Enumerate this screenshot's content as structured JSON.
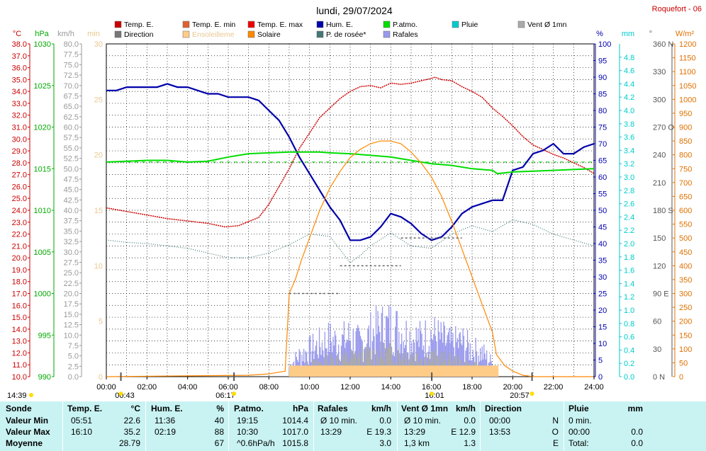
{
  "header": {
    "title": "lundi, 29/07/2024",
    "station": "Roquefort - 06"
  },
  "legend": [
    {
      "label": "Temp. E.",
      "color": "#cc0000"
    },
    {
      "label": "Temp. E. min",
      "color": "#e06030"
    },
    {
      "label": "Temp. E. max",
      "color": "#ee0000"
    },
    {
      "label": "Hum. E.",
      "color": "#0000aa"
    },
    {
      "label": "P.atmo.",
      "color": "#00dd00"
    },
    {
      "label": "Pluie",
      "color": "#00cccc"
    },
    {
      "label": "Vent Ø 1mn",
      "color": "#aaaaaa"
    },
    {
      "label": "Direction",
      "color": "#777777"
    },
    {
      "label": "Ensoleilleme",
      "color": "#ffcc88"
    },
    {
      "label": "Solaire",
      "color": "#ff8800"
    },
    {
      "label": "P. de rosée*",
      "color": "#447777"
    },
    {
      "label": "Rafales",
      "color": "#9999ee"
    }
  ],
  "axes_units": {
    "temp": "°C",
    "press": "hPa",
    "speed": "km/h",
    "min": "min",
    "hum": "%",
    "rain": "mm",
    "dir": "°",
    "solar": "W/m²"
  },
  "axes_ticks": {
    "temp": [
      "38.0",
      "37.0",
      "36.0",
      "35.0",
      "34.0",
      "33.0",
      "32.0",
      "31.0",
      "30.0",
      "29.0",
      "28.0",
      "27.0",
      "26.0",
      "25.0",
      "24.0",
      "23.0",
      "22.0",
      "21.0",
      "20.0",
      "19.0",
      "18.0",
      "17.0",
      "16.0",
      "15.0",
      "14.0",
      "13.0",
      "12.0",
      "11.0",
      "10.0"
    ],
    "press": [
      "1030",
      "1025",
      "1020",
      "1015",
      "1010",
      "1005",
      "1000",
      "995",
      "990"
    ],
    "speed": [
      "80.0",
      "77.5",
      "75.0",
      "72.5",
      "70.0",
      "67.5",
      "65.0",
      "62.5",
      "60.0",
      "57.5",
      "55.0",
      "52.5",
      "50.0",
      "47.5",
      "45.0",
      "42.5",
      "40.0",
      "37.5",
      "35.0",
      "32.5",
      "30.0",
      "27.5",
      "25.0",
      "22.5",
      "20.0",
      "17.5",
      "15.0",
      "12.5",
      "10.0",
      "7.5",
      "5.0",
      "2.5",
      "0.0"
    ],
    "min": [
      "30",
      "25",
      "20",
      "15",
      "10",
      "5",
      "0"
    ],
    "hum": [
      "100",
      "95",
      "90",
      "85",
      "80",
      "75",
      "70",
      "65",
      "60",
      "55",
      "50",
      "45",
      "40",
      "35",
      "30",
      "25",
      "20",
      "15",
      "10",
      "5",
      "0"
    ],
    "rain": [
      "4.8",
      "4.6",
      "4.4",
      "4.2",
      "4.0",
      "3.8",
      "3.6",
      "3.4",
      "3.2",
      "3.0",
      "2.8",
      "2.6",
      "2.4",
      "2.2",
      "2.0",
      "1.8",
      "1.6",
      "1.4",
      "1.2",
      "1.0",
      "0.8",
      "0.6",
      "0.4",
      "0.2",
      "0.0"
    ],
    "dir": [
      "360 N",
      "330",
      "300",
      "270 O",
      "240",
      "210",
      "180 S",
      "150",
      "120",
      "90 E",
      "60",
      "30",
      "0 N"
    ],
    "solar": [
      "1200",
      "1150",
      "1100",
      "1050",
      "1000",
      "950",
      "900",
      "850",
      "800",
      "750",
      "700",
      "650",
      "600",
      "550",
      "500",
      "450",
      "400",
      "350",
      "300",
      "250",
      "200",
      "150",
      "100",
      "50",
      "0"
    ],
    "time": [
      "00:00",
      "02:00",
      "04:00",
      "06:00",
      "08:00",
      "10:00",
      "12:00",
      "14:00",
      "16:00",
      "18:00",
      "20:00",
      "22:00",
      "24:00"
    ]
  },
  "markers": {
    "moonrise": "00:43",
    "sunrise": "06:17",
    "solar_noon": "16:01",
    "sunset": "20:57",
    "corner": "14:39"
  },
  "chart_data": {
    "type": "line",
    "x_unit": "hour",
    "xlim": [
      0,
      24
    ],
    "series": [
      {
        "name": "Temp. E.",
        "unit": "°C",
        "color": "#cc0000",
        "x": [
          0,
          1,
          2,
          3,
          4,
          5,
          5.85,
          6.5,
          7.5,
          8,
          8.5,
          9,
          9.5,
          10,
          10.5,
          11,
          11.5,
          12,
          12.5,
          13,
          13.5,
          14,
          14.5,
          15,
          15.5,
          16,
          16.17,
          16.5,
          17,
          17.5,
          18,
          18.5,
          19,
          19.5,
          20,
          20.5,
          21,
          21.5,
          22,
          22.5,
          23,
          23.5,
          24
        ],
        "y": [
          24.2,
          23.9,
          23.6,
          23.3,
          23.1,
          22.9,
          22.6,
          22.7,
          23.4,
          24.5,
          26.0,
          27.5,
          29.2,
          30.5,
          31.8,
          32.6,
          33.4,
          34.0,
          34.4,
          34.5,
          34.3,
          34.7,
          34.6,
          34.7,
          34.9,
          35.1,
          35.2,
          35.0,
          34.9,
          34.4,
          34.0,
          33.5,
          32.6,
          31.9,
          31.1,
          30.2,
          29.5,
          29.1,
          28.7,
          28.4,
          28.0,
          27.6,
          27.1
        ]
      },
      {
        "name": "Hum. E.",
        "unit": "%",
        "color": "#0000aa",
        "x": [
          0,
          0.5,
          1,
          1.5,
          2,
          2.5,
          3,
          3.5,
          4,
          4.5,
          5,
          5.5,
          6,
          6.5,
          7,
          7.5,
          8,
          8.5,
          9,
          9.5,
          10,
          10.5,
          11,
          11.5,
          12,
          12.5,
          13,
          13.5,
          14,
          14.5,
          15,
          15.5,
          16,
          16.5,
          17,
          17.5,
          18,
          18.5,
          19,
          19.5,
          20,
          20.5,
          21,
          21.5,
          22,
          22.5,
          23,
          23.5,
          24
        ],
        "y": [
          86,
          86,
          87,
          87,
          87,
          87,
          88,
          87,
          87,
          86,
          85,
          85,
          84,
          84,
          84,
          83,
          80,
          77,
          72,
          66,
          61,
          56,
          51,
          47,
          41,
          41,
          42,
          45,
          49,
          48,
          46,
          43,
          41,
          42,
          45,
          49,
          51,
          52,
          53,
          53,
          62,
          63,
          67,
          68,
          70,
          67,
          67,
          69,
          70
        ]
      },
      {
        "name": "P.atmo.",
        "unit": "hPa",
        "color": "#00dd00",
        "x": [
          0,
          1,
          2,
          3,
          4,
          5,
          6,
          7,
          8,
          9,
          10,
          10.5,
          11,
          12,
          13,
          14,
          15,
          16,
          17,
          18,
          19,
          19.25,
          20,
          21,
          22,
          23,
          24
        ],
        "y": [
          1015.8,
          1015.9,
          1016.0,
          1016.0,
          1015.8,
          1015.9,
          1016.4,
          1016.8,
          1016.9,
          1017.0,
          1017.0,
          1017.0,
          1016.9,
          1016.8,
          1016.6,
          1016.4,
          1016.0,
          1015.6,
          1015.4,
          1015.0,
          1014.8,
          1014.4,
          1014.6,
          1014.7,
          1014.8,
          1014.9,
          1015.0
        ]
      },
      {
        "name": "P. de rosée*",
        "unit": "°C",
        "color": "#447777",
        "x": [
          0,
          1,
          2,
          3,
          4,
          5,
          6,
          7,
          8,
          9,
          10,
          11,
          12,
          12.5,
          13,
          14,
          15,
          16,
          17,
          18,
          19,
          20,
          21,
          22,
          23,
          24
        ],
        "y": [
          21.5,
          21.3,
          21.2,
          21.0,
          20.8,
          20.4,
          20.0,
          20.0,
          20.4,
          21.1,
          22.0,
          21.8,
          19.6,
          20.2,
          21.0,
          22.1,
          21.0,
          20.8,
          22.0,
          22.7,
          22.2,
          23.2,
          22.8,
          22.0,
          21.5,
          21.0
        ]
      },
      {
        "name": "Solaire",
        "unit": "W/m²",
        "color": "#ff8800",
        "x": [
          0,
          7,
          8,
          8.8,
          9,
          9.3,
          9.6,
          10,
          10.5,
          11,
          11.5,
          12,
          12.5,
          13,
          13.5,
          14,
          14.5,
          15,
          15.5,
          16,
          16.5,
          17,
          17.5,
          18,
          18.5,
          19,
          19.2,
          19.6,
          20,
          20.5,
          21,
          24
        ],
        "y": [
          0,
          5,
          10,
          20,
          300,
          350,
          420,
          500,
          600,
          680,
          740,
          790,
          820,
          840,
          850,
          850,
          840,
          810,
          770,
          720,
          650,
          560,
          460,
          360,
          260,
          160,
          80,
          40,
          20,
          5,
          0,
          0
        ]
      },
      {
        "name": "Rafales",
        "unit": "km/h",
        "color": "#9999ee",
        "x": [
          9,
          9.5,
          10,
          10.5,
          11,
          11.5,
          12,
          12.5,
          13,
          13.5,
          14,
          14.5,
          15,
          15.5,
          16,
          16.5,
          17,
          17.5,
          18,
          18.5,
          19
        ],
        "y": [
          4,
          8,
          10,
          12,
          14,
          13,
          15,
          12,
          16,
          18,
          19.3,
          17,
          15,
          14,
          16,
          14,
          12,
          13,
          10,
          9,
          5
        ]
      },
      {
        "name": "Vent Ø 1mn",
        "unit": "km/h",
        "color": "#aaaaaa",
        "x": [
          9,
          10,
          11,
          12,
          13,
          14,
          15,
          16,
          17,
          18,
          19
        ],
        "y": [
          2,
          4,
          6,
          7,
          8,
          9,
          8,
          7,
          6,
          4,
          2
        ]
      },
      {
        "name": "Ensoleilleme",
        "unit": "min",
        "color": "#ffcc88",
        "x": [
          9,
          19.3
        ],
        "y": [
          1,
          1
        ]
      }
    ],
    "direction_levels_deg": [
      {
        "from": 9.0,
        "to": 11.5,
        "deg": 90
      },
      {
        "from": 11.5,
        "to": 14.5,
        "deg": 120
      },
      {
        "from": 14.5,
        "to": 17.5,
        "deg": 150
      }
    ]
  },
  "stats": {
    "headers": {
      "sonde": "Sonde",
      "temp": "Temp. E.",
      "temp_unit": "°C",
      "hum": "Hum. E.",
      "hum_unit": "%",
      "press": "P.atmo.",
      "press_unit": "hPa",
      "gust": "Rafales",
      "gust_unit": "km/h",
      "wind": "Vent Ø 1mn",
      "wind_unit": "km/h",
      "dir": "Direction",
      "rain": "Pluie",
      "rain_unit": "mm"
    },
    "rows": {
      "labels": [
        "Valeur Min",
        "Valeur Max",
        "Moyenne"
      ],
      "temp_time": [
        "05:51",
        "16:10",
        ""
      ],
      "temp_val": [
        "22.6",
        "35.2",
        "28.79"
      ],
      "hum_time": [
        "11:36",
        "02:19",
        ""
      ],
      "hum_val": [
        "40",
        "88",
        "67"
      ],
      "press_time": [
        "19:15",
        "10:30",
        "^0.6hPa/h"
      ],
      "press_val": [
        "1014.4",
        "1017.0",
        "1015.8"
      ],
      "gust_label": [
        "Ø 10 min.",
        "13:29",
        ""
      ],
      "gust_val": [
        "0.0",
        "E 19.3",
        "3.0"
      ],
      "wind_label": [
        "Ø 10 min.",
        "13:29",
        "1,3 km"
      ],
      "wind_val": [
        "0.0",
        "E 12.9",
        "1.3"
      ],
      "dir_time": [
        "00:00",
        "13:53",
        ""
      ],
      "dir_val": [
        "N",
        "O",
        "E"
      ],
      "rain_label": [
        "0 min.",
        "00:00",
        "Total:"
      ],
      "rain_val": [
        "",
        "0.0",
        "0.0"
      ]
    }
  }
}
